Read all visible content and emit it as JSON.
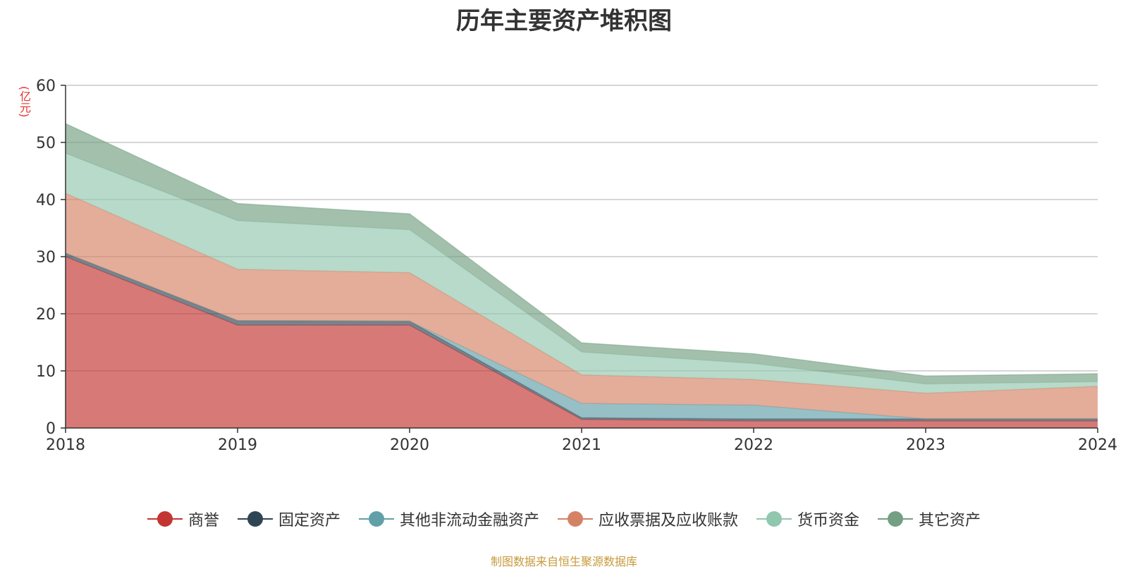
{
  "chart_data": {
    "type": "area",
    "stacked": true,
    "title": "历年主要资产堆积图",
    "unit_label": "(亿元)",
    "x": [
      "2018",
      "2019",
      "2020",
      "2021",
      "2022",
      "2023",
      "2024"
    ],
    "ylim": [
      0,
      60
    ],
    "yticks": [
      0,
      10,
      20,
      30,
      40,
      50,
      60
    ],
    "grid": true,
    "legend_position": "bottom",
    "series": [
      {
        "name": "商誉",
        "color": "#c23531",
        "values": [
          30.0,
          18.0,
          18.0,
          1.5,
          1.2,
          1.2,
          1.2
        ]
      },
      {
        "name": "固定资产",
        "color": "#2f4554",
        "values": [
          0.6,
          0.8,
          0.7,
          0.3,
          0.4,
          0.4,
          0.4
        ]
      },
      {
        "name": "其他非流动金融资产",
        "color": "#61a0a8",
        "values": [
          0.0,
          0.0,
          0.0,
          2.5,
          2.4,
          0.0,
          0.0
        ]
      },
      {
        "name": "应收票据及应收账款",
        "color": "#d48265",
        "values": [
          10.5,
          9.0,
          8.5,
          5.0,
          4.5,
          4.5,
          5.7
        ]
      },
      {
        "name": "货币资金",
        "color": "#91c7ae",
        "values": [
          7.0,
          8.5,
          7.5,
          4.0,
          2.8,
          1.6,
          0.8
        ]
      },
      {
        "name": "其它资产",
        "color": "#749f83",
        "values": [
          5.2,
          3.0,
          2.8,
          1.6,
          1.7,
          1.4,
          1.4
        ]
      }
    ]
  },
  "source_note": "制图数据来自恒生聚源数据库"
}
